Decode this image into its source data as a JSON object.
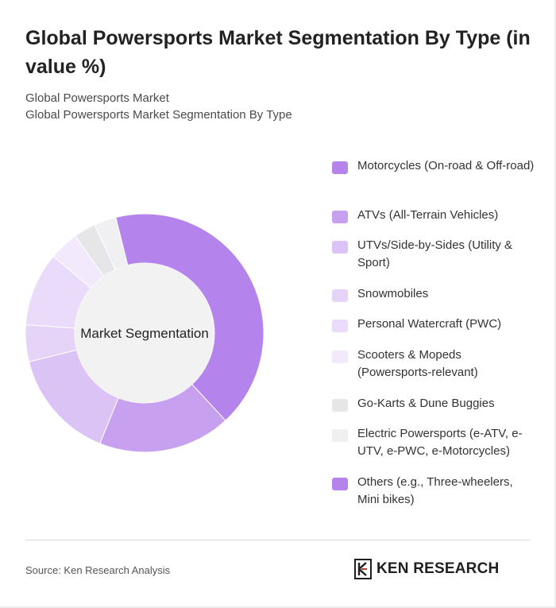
{
  "header": {
    "title": "Global Powersports Market Segmentation By Type (in value %)",
    "subtitle_line1": "Global Powersports Market",
    "subtitle_line2": "Global Powersports Market Segmentation By Type"
  },
  "chart_data": {
    "type": "pie",
    "variant": "donut",
    "center_label": "Market Segmentation",
    "legend_position": "right",
    "categories": [
      "Motorcycles (On-road & Off-road)",
      "ATVs (All-Terrain Vehicles)",
      "UTVs/Side-by-Sides (Utility & Sport)",
      "Snowmobiles",
      "Personal Watercraft (PWC)",
      "Scooters & Mopeds (Powersports-relevant)",
      "Go-Karts & Dune Buggies",
      "Electric Powersports (e-ATV, e-UTV, e-PWC, e-Motorcycles)",
      "Others (e.g., Three-wheelers, Mini bikes)"
    ],
    "values": [
      42,
      18,
      15,
      5,
      10,
      4,
      3,
      3,
      0
    ],
    "colors": [
      "#b583ec",
      "#c7a0f0",
      "#dbc3f6",
      "#e5d4f8",
      "#eadbfa",
      "#f2eafc",
      "#e6e6e8",
      "#f0f0f2",
      "#b583ec"
    ]
  },
  "footer": {
    "source": "Source: Ken Research Analysis",
    "logo_text": "KEN RESEARCH"
  }
}
